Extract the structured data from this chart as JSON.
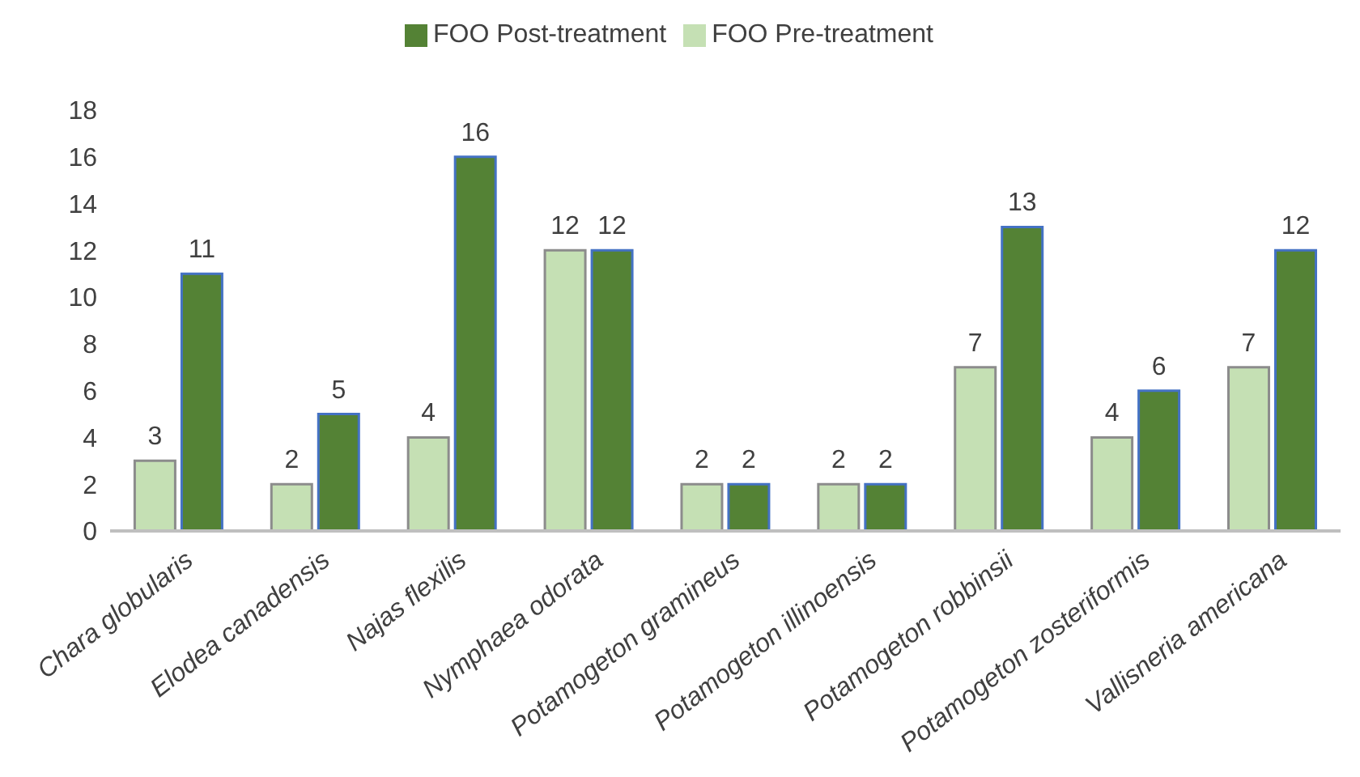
{
  "chart_data": {
    "type": "bar",
    "categories": [
      "Chara globularis",
      "Elodea canadensis",
      "Najas flexilis",
      "Nymphaea odorata",
      "Potamogeton gramineus",
      "Potamogeton illinoensis",
      "Potamogeton robbinsii",
      "Potamogeton zosteriformis",
      "Vallisneria americana"
    ],
    "series": [
      {
        "name": "FOO Pre-treatment",
        "color": "#c5e0b4",
        "values": [
          3,
          2,
          4,
          12,
          2,
          2,
          7,
          4,
          7
        ]
      },
      {
        "name": "FOO Post-treatment",
        "color": "#548235",
        "values": [
          11,
          5,
          16,
          12,
          2,
          2,
          13,
          6,
          12
        ]
      }
    ],
    "ylim": [
      0,
      18
    ],
    "yticks": [
      0,
      2,
      4,
      6,
      8,
      10,
      12,
      14,
      16,
      18
    ],
    "grid": false,
    "legend": "top",
    "data_labels": true
  }
}
